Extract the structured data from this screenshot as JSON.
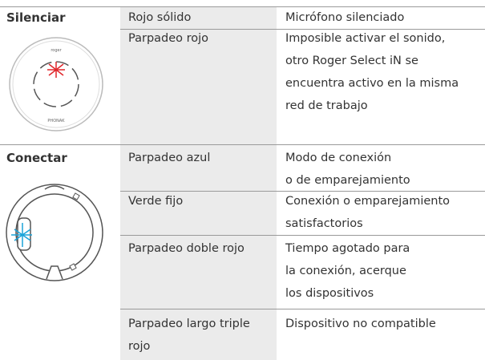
{
  "sections": [
    {
      "title": "Silenciar",
      "device_labels": [
        "roger",
        "PHONAK"
      ],
      "rows": [
        {
          "status": [
            "Rojo sólido"
          ],
          "description": [
            "Micrófono silenciado"
          ]
        },
        {
          "status": [
            "Parpadeo rojo"
          ],
          "description": [
            "Imposible activar el sonido,",
            "otro Roger Select iN se",
            "encuentra activo en la misma",
            "red de trabajo"
          ]
        }
      ]
    },
    {
      "title": "Conectar",
      "rows": [
        {
          "status": [
            "Parpadeo azul"
          ],
          "description": [
            "Modo de conexión",
            "o de emparejamiento"
          ]
        },
        {
          "status": [
            "Verde fijo"
          ],
          "description": [
            "Conexión o emparejamiento",
            "satisfactorios"
          ]
        },
        {
          "status": [
            "Parpadeo doble rojo"
          ],
          "description": [
            "Tiempo agotado para",
            "la conexión, acerque",
            "los dispositivos"
          ]
        },
        {
          "status": [
            "Parpadeo largo triple",
            "rojo"
          ],
          "description": [
            "Dispositivo no compatible"
          ]
        }
      ]
    }
  ]
}
